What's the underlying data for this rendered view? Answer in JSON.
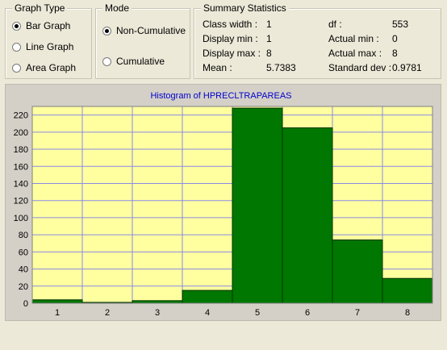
{
  "graph_type": {
    "title": "Graph Type",
    "options": [
      {
        "label": "Bar Graph",
        "selected": true
      },
      {
        "label": "Line Graph",
        "selected": false
      },
      {
        "label": "Area Graph",
        "selected": false
      }
    ]
  },
  "mode": {
    "title": "Mode",
    "options": [
      {
        "label": "Non-Cumulative",
        "selected": true
      },
      {
        "label": "Cumulative",
        "selected": false
      }
    ]
  },
  "summary": {
    "title": "Summary Statistics",
    "class_width_label": "Class width :",
    "class_width": "1",
    "display_min_label": "Display min :",
    "display_min": "1",
    "display_max_label": "Display max :",
    "display_max": "8",
    "mean_label": "Mean :",
    "mean": "5.7383",
    "df_label": "df :",
    "df": "553",
    "actual_min_label": "Actual min :",
    "actual_min": "0",
    "actual_max_label": "Actual max :",
    "actual_max": "8",
    "std_label": "Standard dev :",
    "std": "0.9781"
  },
  "colors": {
    "plot_bg": "#ffffa0",
    "bar_fill": "#007700",
    "bar_stroke": "#003300",
    "grid": "#8a8ae6",
    "title": "#0000cc"
  },
  "chart_data": {
    "type": "bar",
    "title": "Histogram of HPRECLTRAPAREAS",
    "categories": [
      "1",
      "2",
      "3",
      "4",
      "5",
      "6",
      "7",
      "8"
    ],
    "values": [
      4,
      1,
      3,
      15,
      228,
      205,
      74,
      29
    ],
    "y_ticks": [
      "0",
      "20",
      "40",
      "60",
      "80",
      "100",
      "120",
      "140",
      "160",
      "180",
      "200",
      "220"
    ],
    "ylim": [
      0,
      230
    ],
    "grid": true
  }
}
